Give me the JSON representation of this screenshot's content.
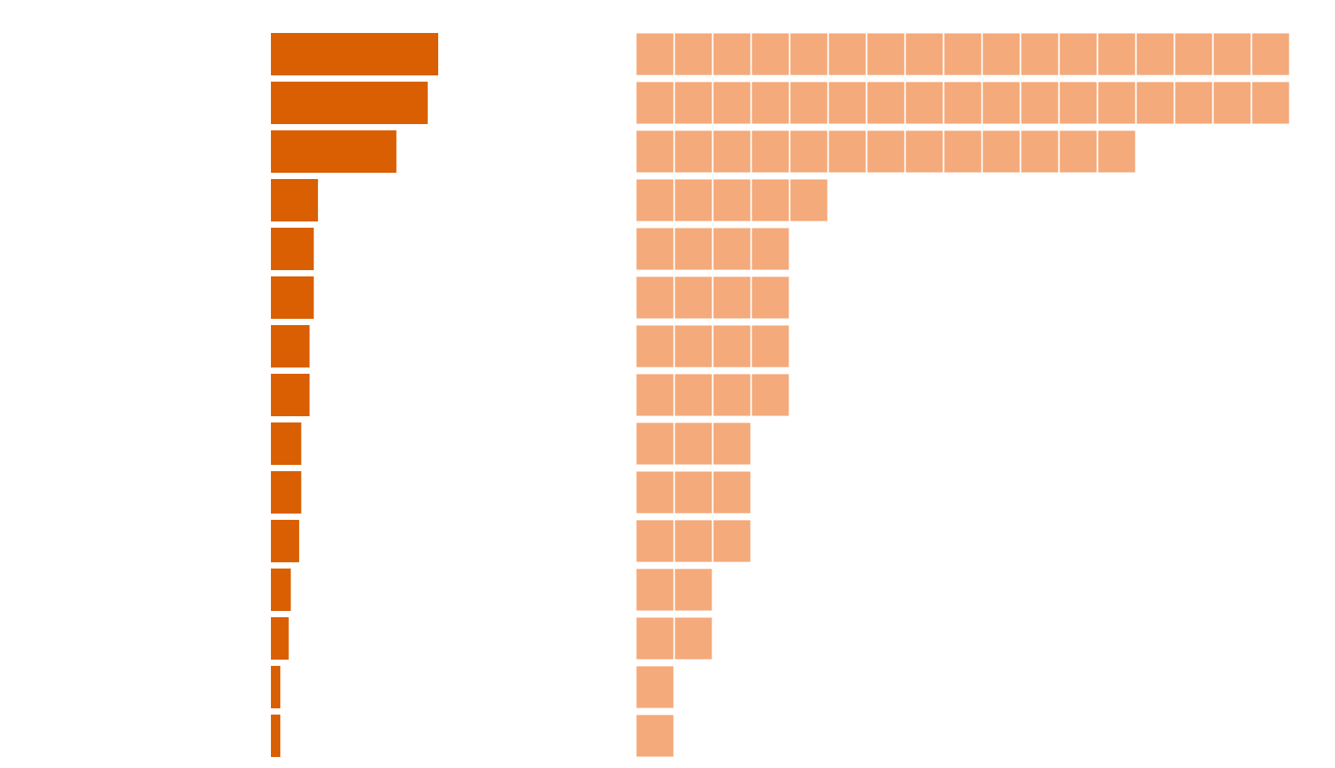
{
  "chart_data": [
    {
      "type": "bar",
      "orientation": "horizontal",
      "categories": [
        "",
        "",
        "",
        "",
        "",
        "",
        "",
        "",
        "",
        "",
        "",
        "",
        "",
        "",
        ""
      ],
      "values": [
        16,
        15,
        12,
        4.5,
        4.1,
        4.1,
        3.7,
        3.7,
        2.9,
        2.9,
        2.7,
        1.9,
        1.7,
        0.9,
        0.9
      ],
      "xlim": [
        0,
        16
      ],
      "grid": false,
      "legend": "none",
      "color": "#d95f02"
    },
    {
      "type": "bar",
      "style": "unit-squares",
      "orientation": "horizontal",
      "categories": [
        "",
        "",
        "",
        "",
        "",
        "",
        "",
        "",
        "",
        "",
        "",
        "",
        "",
        "",
        ""
      ],
      "values": [
        17,
        17,
        13,
        5,
        4,
        4,
        4,
        4,
        3,
        3,
        3,
        2,
        2,
        1,
        1
      ],
      "xlim": [
        0,
        17
      ],
      "grid": false,
      "legend": "none",
      "color": "#f4aa7b",
      "unit_separator_color": "#ffffff"
    }
  ]
}
